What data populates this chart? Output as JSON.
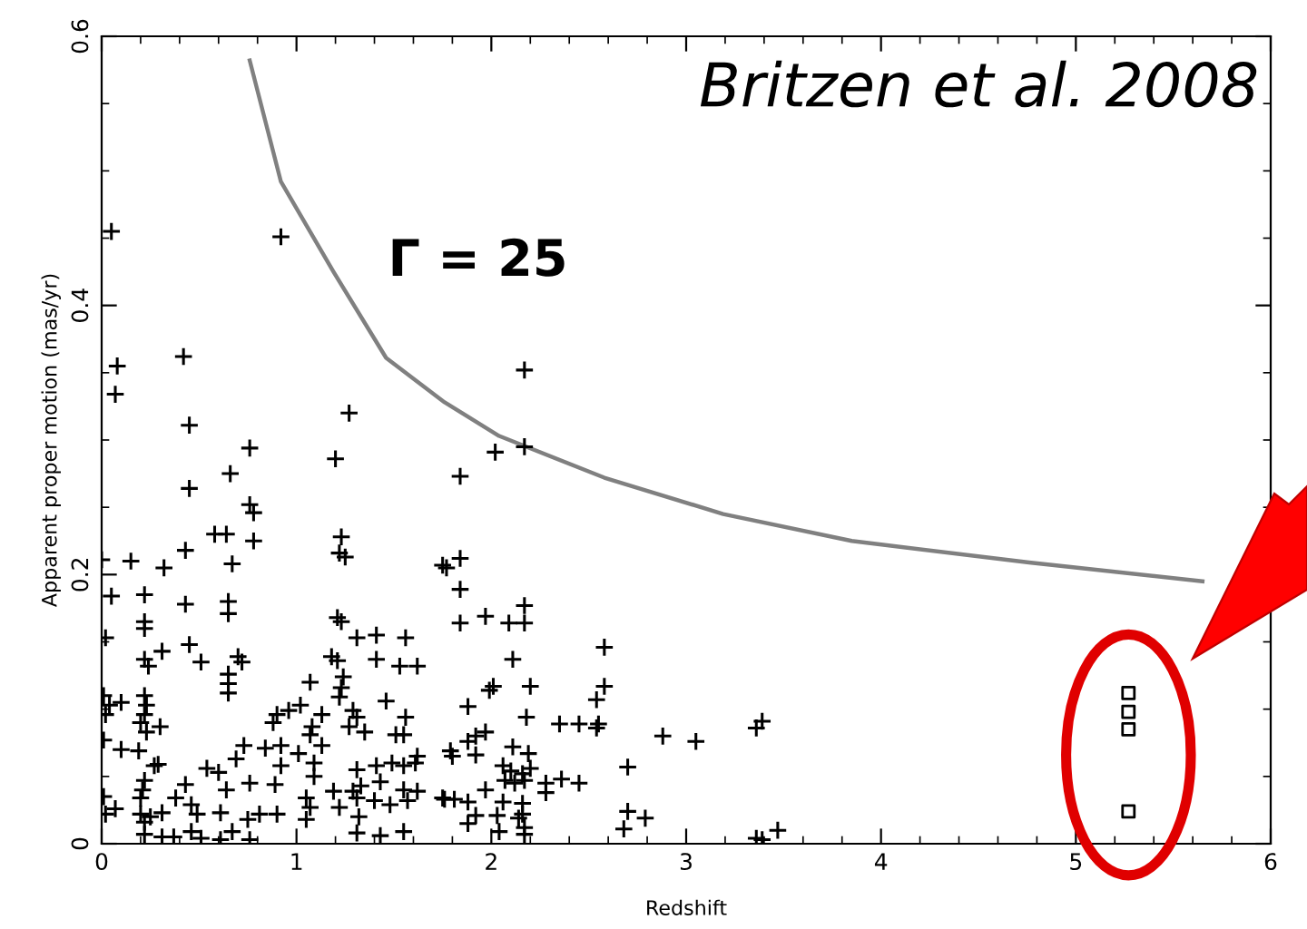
{
  "chart_data": {
    "type": "scatter",
    "xlabel": "Redshift",
    "ylabel": "Apparent proper motion (mas/yr)",
    "xlim": [
      0,
      6
    ],
    "ylim": [
      0,
      0.6
    ],
    "xticks": [
      0,
      1,
      2,
      3,
      4,
      5,
      6
    ],
    "yticks": [
      0,
      0.2,
      0.4,
      0.6
    ],
    "grid": false,
    "annotations": [
      "Britzen et al. 2008"
    ],
    "series": [
      {
        "marker": "cross",
        "color": "#000000",
        "x": [
          0.76,
          1.2,
          0.66,
          0.45,
          0.76,
          0.78,
          0.58,
          0.64,
          0.78,
          1.23,
          0.43,
          1.22,
          1.25,
          0.67,
          0.0,
          0.15,
          0.32,
          0.05,
          0.22,
          0.22,
          0.22,
          0.43,
          0.65,
          0.65,
          1.21,
          1.23,
          0.02,
          1.31,
          1.41,
          1.56,
          0.31,
          0.45,
          0.51,
          0.22,
          0.24,
          0.7,
          0.72,
          1.18,
          1.21,
          1.41,
          1.53,
          1.62,
          0.65,
          0.65,
          0.65,
          1.07,
          1.24,
          1.23,
          1.22,
          0.01,
          0.04,
          0.02,
          0.1,
          0.22,
          0.23,
          0.22,
          0.2,
          0.23,
          0.3,
          0.9,
          0.88,
          0.96,
          1.02,
          1.13,
          1.07,
          1.08,
          1.29,
          1.31,
          1.27,
          1.35,
          1.46,
          1.56,
          1.51,
          1.55,
          0.01,
          0.1,
          0.19,
          0.29,
          0.27,
          0.73,
          0.84,
          0.92,
          1.01,
          1.13,
          0.92,
          1.09,
          0.54,
          0.6,
          0.69,
          1.31,
          1.41,
          1.49,
          1.55,
          1.62,
          1.61,
          0.22,
          0.21,
          0.43,
          0.64,
          0.76,
          0.89,
          1.09,
          1.19,
          1.29,
          1.33,
          1.43,
          1.55,
          1.62,
          0.01,
          0.02,
          0.07,
          0.2,
          0.2,
          0.22,
          0.25,
          0.31,
          0.38,
          0.46,
          0.49,
          0.61,
          0.75,
          0.81,
          0.9,
          1.05,
          1.07,
          1.05,
          1.22,
          1.31,
          1.32,
          1.4,
          1.48,
          1.57,
          0.22,
          0.31,
          0.37,
          0.46,
          0.51,
          0.61,
          0.67,
          0.76,
          1.31,
          1.43,
          1.55,
          1.75,
          1.75,
          0.05,
          0.92,
          0.42,
          0.08,
          0.07,
          0.45,
          1.27,
          2.17,
          2.02,
          1.84,
          2.17,
          1.84,
          1.77,
          1.84,
          1.84,
          1.97,
          2.09,
          2.17,
          2.17,
          2.11,
          2.58,
          2.58,
          2.54,
          1.99,
          2.01,
          2.2,
          1.88,
          2.18,
          2.35,
          2.45,
          2.55,
          2.54,
          2.88,
          3.05,
          3.36,
          3.39,
          1.97,
          1.92,
          1.88,
          1.92,
          1.79,
          1.8,
          2.11,
          2.19,
          2.06,
          2.1,
          2.16,
          2.2,
          2.07,
          2.12,
          2.17,
          2.28,
          2.28,
          2.36,
          2.45,
          2.7,
          1.76,
          1.81,
          1.88,
          1.97,
          2.06,
          2.16,
          1.92,
          1.88,
          2.03,
          2.14,
          2.16,
          2.7,
          2.79,
          2.68,
          2.04,
          2.17,
          2.17,
          3.36,
          3.39,
          3.47
        ],
        "values": [
          0.294,
          0.286,
          0.275,
          0.264,
          0.252,
          0.246,
          0.23,
          0.23,
          0.225,
          0.228,
          0.218,
          0.216,
          0.213,
          0.208,
          0.211,
          0.21,
          0.205,
          0.184,
          0.185,
          0.165,
          0.16,
          0.178,
          0.18,
          0.171,
          0.168,
          0.165,
          0.153,
          0.153,
          0.155,
          0.153,
          0.143,
          0.148,
          0.135,
          0.137,
          0.132,
          0.139,
          0.135,
          0.139,
          0.136,
          0.137,
          0.132,
          0.132,
          0.126,
          0.119,
          0.112,
          0.12,
          0.124,
          0.116,
          0.109,
          0.11,
          0.103,
          0.096,
          0.105,
          0.11,
          0.103,
          0.096,
          0.09,
          0.083,
          0.087,
          0.096,
          0.09,
          0.099,
          0.103,
          0.096,
          0.081,
          0.087,
          0.099,
          0.094,
          0.087,
          0.083,
          0.106,
          0.094,
          0.081,
          0.081,
          0.077,
          0.07,
          0.069,
          0.059,
          0.058,
          0.073,
          0.071,
          0.073,
          0.067,
          0.073,
          0.058,
          0.06,
          0.056,
          0.053,
          0.063,
          0.055,
          0.058,
          0.06,
          0.058,
          0.065,
          0.06,
          0.047,
          0.04,
          0.044,
          0.04,
          0.045,
          0.044,
          0.05,
          0.039,
          0.039,
          0.043,
          0.046,
          0.04,
          0.039,
          0.035,
          0.022,
          0.026,
          0.034,
          0.022,
          0.016,
          0.02,
          0.023,
          0.034,
          0.029,
          0.022,
          0.023,
          0.018,
          0.022,
          0.022,
          0.034,
          0.027,
          0.018,
          0.027,
          0.034,
          0.02,
          0.032,
          0.029,
          0.032,
          0.007,
          0.005,
          0.005,
          0.009,
          0.004,
          0.003,
          0.009,
          0.003,
          0.008,
          0.006,
          0.009,
          0.034,
          0.207,
          0.455,
          0.451,
          0.362,
          0.355,
          0.334,
          0.311,
          0.32,
          0.352,
          0.291,
          0.273,
          0.295,
          0.212,
          0.205,
          0.189,
          0.164,
          0.169,
          0.164,
          0.164,
          0.177,
          0.137,
          0.146,
          0.117,
          0.107,
          0.114,
          0.117,
          0.117,
          0.102,
          0.094,
          0.089,
          0.089,
          0.089,
          0.086,
          0.08,
          0.076,
          0.086,
          0.091,
          0.083,
          0.08,
          0.076,
          0.066,
          0.069,
          0.065,
          0.072,
          0.067,
          0.058,
          0.054,
          0.052,
          0.056,
          0.047,
          0.045,
          0.047,
          0.045,
          0.038,
          0.048,
          0.045,
          0.057,
          0.033,
          0.033,
          0.031,
          0.04,
          0.031,
          0.03,
          0.021,
          0.015,
          0.021,
          0.019,
          0.022,
          0.024,
          0.019,
          0.011,
          0.009,
          0.007,
          0.012,
          0.004,
          0.003,
          0.01
        ]
      },
      {
        "marker": "square",
        "color": "#000000",
        "x": [
          5.27,
          5.27,
          5.27,
          5.27
        ],
        "values": [
          0.112,
          0.098,
          0.085,
          0.024
        ]
      },
      {
        "type": "line",
        "name": "Γ = 25",
        "color": "#808080",
        "line_style": "solid",
        "marker": "none",
        "x": [
          0.76,
          0.92,
          1.19,
          1.46,
          1.76,
          2.04,
          2.58,
          3.19,
          3.85,
          4.76,
          5.65
        ],
        "values": [
          0.582,
          0.492,
          0.425,
          0.361,
          0.328,
          0.303,
          0.272,
          0.245,
          0.225,
          0.209,
          0.195
        ]
      }
    ]
  }
}
